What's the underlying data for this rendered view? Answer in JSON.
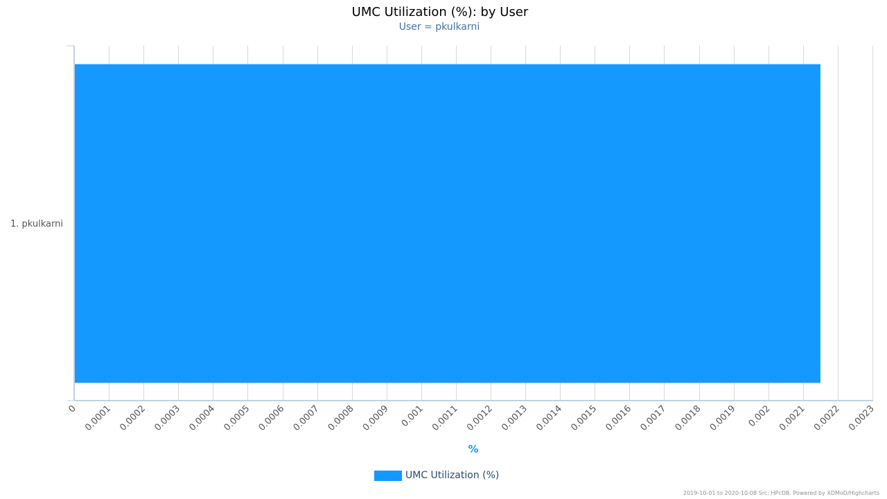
{
  "chart_data": {
    "type": "bar",
    "orientation": "horizontal",
    "title": "UMC Utilization (%): by User",
    "subtitle": "User = pkulkarni",
    "categories": [
      "1. pkulkarni"
    ],
    "series": [
      {
        "name": "UMC Utilization (%)",
        "values": [
          0.00215
        ],
        "color": "#1399ff"
      }
    ],
    "xlabel": "%",
    "xlim": [
      0,
      0.0023
    ],
    "x_ticks": [
      "0",
      "0.0001",
      "0.0002",
      "0.0003",
      "0.0004",
      "0.0005",
      "0.0006",
      "0.0007",
      "0.0008",
      "0.0009",
      "0.001",
      "0.0011",
      "0.0012",
      "0.0013",
      "0.0014",
      "0.0015",
      "0.0016",
      "0.0017",
      "0.0018",
      "0.0019",
      "0.002",
      "0.0021",
      "0.0022",
      "0.0023"
    ],
    "grid": true,
    "legend_position": "bottom-center"
  },
  "footer": {
    "credits": "2019-10-01 to 2020-10-08 Src: HPcDB. Powered by XDMoD/Highcharts"
  }
}
